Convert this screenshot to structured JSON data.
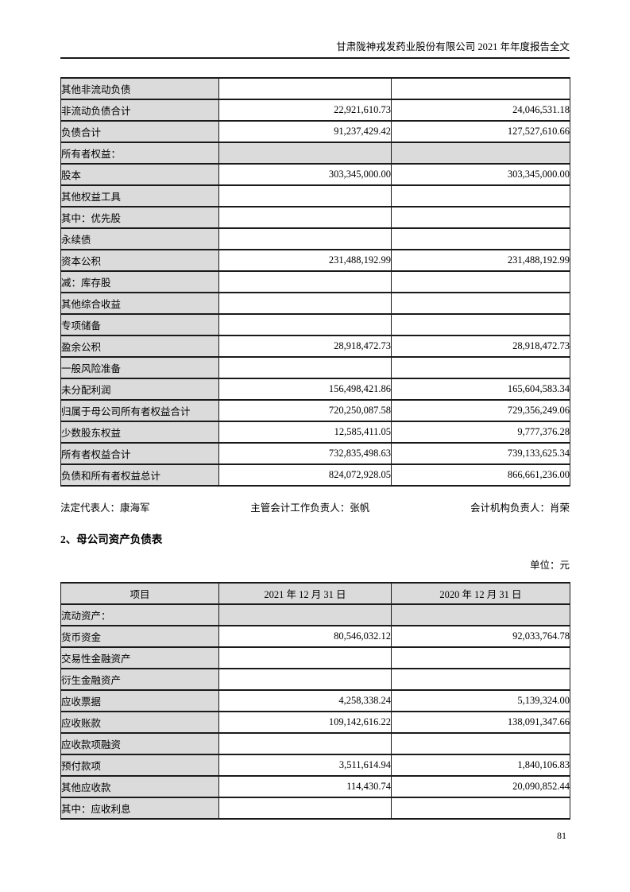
{
  "header": {
    "title": "甘肃陇神戎发药业股份有限公司 2021 年年度报告全文"
  },
  "balance_sheet_continued": {
    "rows": [
      {
        "label": "其他非流动负债",
        "indent": 1,
        "value1": "",
        "value2": "",
        "shaded": false
      },
      {
        "label": "非流动负债合计",
        "indent": 0,
        "value1": "22,921,610.73",
        "value2": "24,046,531.18",
        "shaded": false
      },
      {
        "label": "负债合计",
        "indent": 0,
        "value1": "91,237,429.42",
        "value2": "127,527,610.66",
        "shaded": false
      },
      {
        "label": "所有者权益：",
        "indent": 0,
        "value1": "",
        "value2": "",
        "shaded": true
      },
      {
        "label": "股本",
        "indent": 1,
        "value1": "303,345,000.00",
        "value2": "303,345,000.00",
        "shaded": false
      },
      {
        "label": "其他权益工具",
        "indent": 1,
        "value1": "",
        "value2": "",
        "shaded": false
      },
      {
        "label": "其中：优先股",
        "indent": 2,
        "value1": "",
        "value2": "",
        "shaded": false
      },
      {
        "label": "永续债",
        "indent": 3,
        "value1": "",
        "value2": "",
        "shaded": false
      },
      {
        "label": "资本公积",
        "indent": 1,
        "value1": "231,488,192.99",
        "value2": "231,488,192.99",
        "shaded": false
      },
      {
        "label": "减：库存股",
        "indent": 1,
        "value1": "",
        "value2": "",
        "shaded": false
      },
      {
        "label": "其他综合收益",
        "indent": 1,
        "value1": "",
        "value2": "",
        "shaded": false
      },
      {
        "label": "专项储备",
        "indent": 1,
        "value1": "",
        "value2": "",
        "shaded": false
      },
      {
        "label": "盈余公积",
        "indent": 1,
        "value1": "28,918,472.73",
        "value2": "28,918,472.73",
        "shaded": false
      },
      {
        "label": "一般风险准备",
        "indent": 1,
        "value1": "",
        "value2": "",
        "shaded": false
      },
      {
        "label": "未分配利润",
        "indent": 1,
        "value1": "156,498,421.86",
        "value2": "165,604,583.34",
        "shaded": false
      },
      {
        "label": "归属于母公司所有者权益合计",
        "indent": 0,
        "value1": "720,250,087.58",
        "value2": "729,356,249.06",
        "shaded": false
      },
      {
        "label": "少数股东权益",
        "indent": 1,
        "value1": "12,585,411.05",
        "value2": "9,777,376.28",
        "shaded": false
      },
      {
        "label": "所有者权益合计",
        "indent": 0,
        "value1": "732,835,498.63",
        "value2": "739,133,625.34",
        "shaded": false
      },
      {
        "label": "负债和所有者权益总计",
        "indent": 0,
        "value1": "824,072,928.05",
        "value2": "866,661,236.00",
        "shaded": false
      }
    ]
  },
  "signature": {
    "legal_representative": "法定代表人：康海军",
    "chief_accounting_officer": "主管会计工作负责人：张帆",
    "accounting_department_head": "会计机构负责人：肖荣"
  },
  "section": {
    "heading": "2、母公司资产负债表",
    "unit": "单位：元"
  },
  "parent_balance_sheet": {
    "headers": [
      "项目",
      "2021 年 12 月 31 日",
      "2020 年 12 月 31 日"
    ],
    "rows": [
      {
        "label": "流动资产：",
        "indent": 0,
        "value1": "",
        "value2": "",
        "shaded": true
      },
      {
        "label": "货币资金",
        "indent": 1,
        "value1": "80,546,032.12",
        "value2": "92,033,764.78",
        "shaded": false
      },
      {
        "label": "交易性金融资产",
        "indent": 1,
        "value1": "",
        "value2": "",
        "shaded": false
      },
      {
        "label": "衍生金融资产",
        "indent": 1,
        "value1": "",
        "value2": "",
        "shaded": false
      },
      {
        "label": "应收票据",
        "indent": 1,
        "value1": "4,258,338.24",
        "value2": "5,139,324.00",
        "shaded": false
      },
      {
        "label": "应收账款",
        "indent": 1,
        "value1": "109,142,616.22",
        "value2": "138,091,347.66",
        "shaded": false
      },
      {
        "label": "应收款项融资",
        "indent": 1,
        "value1": "",
        "value2": "",
        "shaded": false
      },
      {
        "label": "预付款项",
        "indent": 1,
        "value1": "3,511,614.94",
        "value2": "1,840,106.83",
        "shaded": false
      },
      {
        "label": "其他应收款",
        "indent": 1,
        "value1": "114,430.74",
        "value2": "20,090,852.44",
        "shaded": false
      },
      {
        "label": "其中：应收利息",
        "indent": 2,
        "value1": "",
        "value2": "",
        "shaded": false
      }
    ]
  },
  "footer": {
    "page_number": "81"
  },
  "colors": {
    "cell_shading": "#dbdbdb",
    "border": "#1a1a1a",
    "text": "#000000"
  }
}
